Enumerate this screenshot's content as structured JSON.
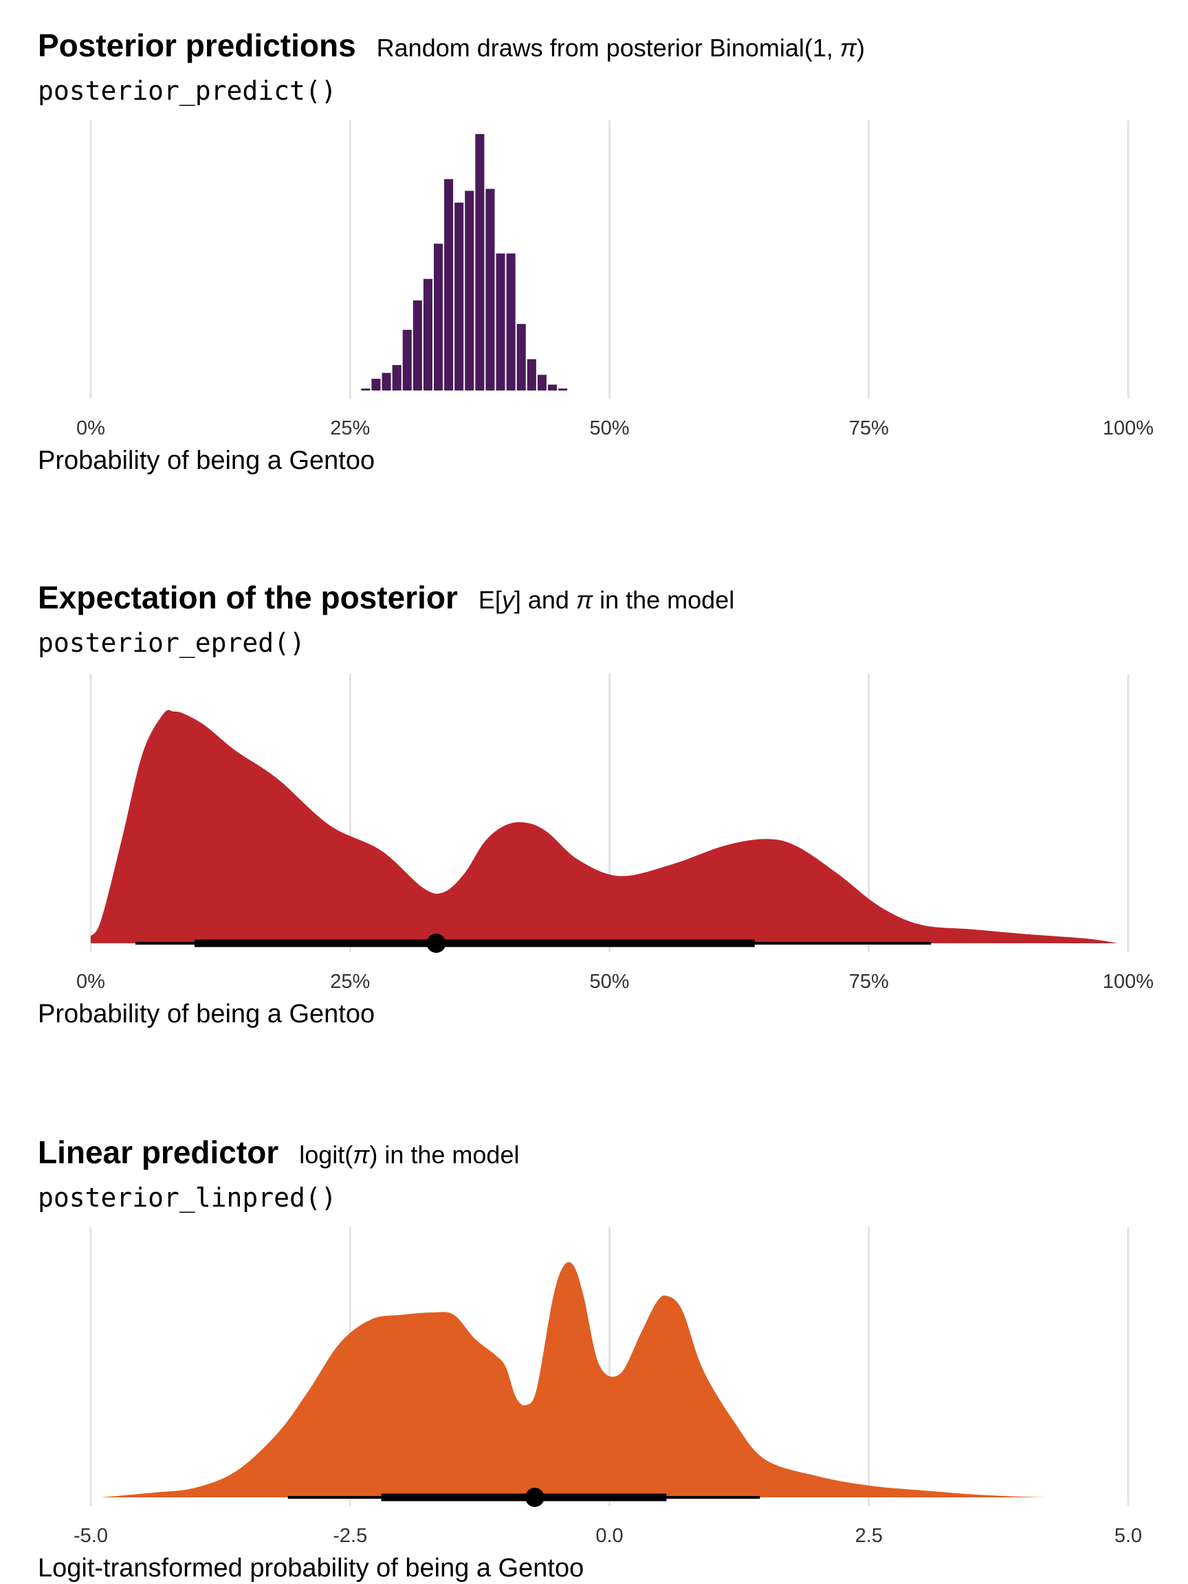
{
  "chart_data": [
    {
      "type": "bar",
      "title": "Posterior predictions",
      "subtitle_prefix": "Random draws from posterior Binomial(1, ",
      "subtitle_symbol": "π",
      "subtitle_suffix": ")",
      "code_label": "posterior_predict()",
      "xlabel": "Probability of being a Gentoo",
      "xlim": [
        0,
        1
      ],
      "ticks": [
        0,
        0.25,
        0.5,
        0.75,
        1
      ],
      "tick_labels": [
        "0%",
        "25%",
        "50%",
        "75%",
        "100%"
      ],
      "grid": "vertical major",
      "fill_color": "#4a1a5a",
      "bin_width": 0.01,
      "bins": [
        0.26,
        0.27,
        0.28,
        0.29,
        0.3,
        0.31,
        0.32,
        0.33,
        0.34,
        0.35,
        0.36,
        0.37,
        0.38,
        0.39,
        0.4,
        0.41,
        0.42,
        0.43,
        0.44,
        0.45
      ],
      "counts": [
        1,
        6,
        9,
        13,
        31,
        46,
        57,
        75,
        108,
        96,
        102,
        131,
        103,
        70,
        70,
        34,
        16,
        8,
        3,
        1
      ]
    },
    {
      "type": "area",
      "title": "Expectation of the posterior",
      "subtitle_pre": "E[",
      "subtitle_y": "y",
      "subtitle_mid": "] and ",
      "subtitle_symbol": "π",
      "subtitle_post": " in the model",
      "code_label": "posterior_epred()",
      "xlabel": "Probability of being a Gentoo",
      "xlim": [
        0,
        1
      ],
      "ticks": [
        0,
        0.25,
        0.5,
        0.75,
        1
      ],
      "tick_labels": [
        "0%",
        "25%",
        "50%",
        "75%",
        "100%"
      ],
      "grid": "vertical major",
      "fill_color": "#be252b",
      "x": [
        0.0,
        0.01,
        0.03,
        0.05,
        0.07,
        0.08,
        0.09,
        0.11,
        0.14,
        0.18,
        0.23,
        0.28,
        0.32,
        0.34,
        0.36,
        0.38,
        0.4,
        0.42,
        0.44,
        0.47,
        0.51,
        0.56,
        0.61,
        0.65,
        0.68,
        0.72,
        0.76,
        0.8,
        0.85,
        0.9,
        0.96,
        0.99
      ],
      "density": [
        0.03,
        0.1,
        0.45,
        0.82,
        0.99,
        1.0,
        0.99,
        0.94,
        0.83,
        0.71,
        0.51,
        0.4,
        0.24,
        0.22,
        0.3,
        0.44,
        0.51,
        0.52,
        0.48,
        0.36,
        0.29,
        0.34,
        0.42,
        0.45,
        0.42,
        0.3,
        0.16,
        0.08,
        0.06,
        0.04,
        0.02,
        0.0
      ],
      "point": 0.333,
      "interval_thick": [
        0.1,
        0.64
      ],
      "interval_thin": [
        0.043,
        0.81
      ],
      "interval_color": "#000000"
    },
    {
      "type": "area",
      "title": "Linear predictor",
      "subtitle_pre": "logit(",
      "subtitle_symbol": "π",
      "subtitle_post": ") in the model",
      "code_label": "posterior_linpred()",
      "xlabel": "Logit-transformed probability of being a Gentoo",
      "xlim": [
        -5,
        5
      ],
      "ticks": [
        -5,
        -2.5,
        0,
        2.5,
        5
      ],
      "tick_labels": [
        "-5.0",
        "-2.5",
        "0.0",
        "2.5",
        "5.0"
      ],
      "grid": "vertical major",
      "fill_color": "#e05e22",
      "x": [
        -4.9,
        -4.4,
        -4.0,
        -3.6,
        -3.2,
        -2.9,
        -2.6,
        -2.3,
        -2.0,
        -1.7,
        -1.5,
        -1.3,
        -1.1,
        -1.0,
        -0.9,
        -0.8,
        -0.7,
        -0.55,
        -0.45,
        -0.35,
        -0.25,
        -0.1,
        0.1,
        0.3,
        0.45,
        0.55,
        0.7,
        0.9,
        1.2,
        1.5,
        2.0,
        2.5,
        3.0,
        3.6,
        4.2,
        4.8
      ],
      "density": [
        0.0,
        0.02,
        0.04,
        0.11,
        0.27,
        0.45,
        0.65,
        0.75,
        0.77,
        0.78,
        0.77,
        0.67,
        0.6,
        0.55,
        0.42,
        0.39,
        0.46,
        0.83,
        0.97,
        0.98,
        0.85,
        0.56,
        0.52,
        0.69,
        0.82,
        0.85,
        0.79,
        0.54,
        0.32,
        0.16,
        0.09,
        0.05,
        0.03,
        0.01,
        0.0,
        0.0
      ],
      "point": -0.72,
      "interval_thick": [
        -2.2,
        0.55
      ],
      "interval_thin": [
        -3.1,
        1.45
      ],
      "interval_color": "#000000"
    }
  ]
}
